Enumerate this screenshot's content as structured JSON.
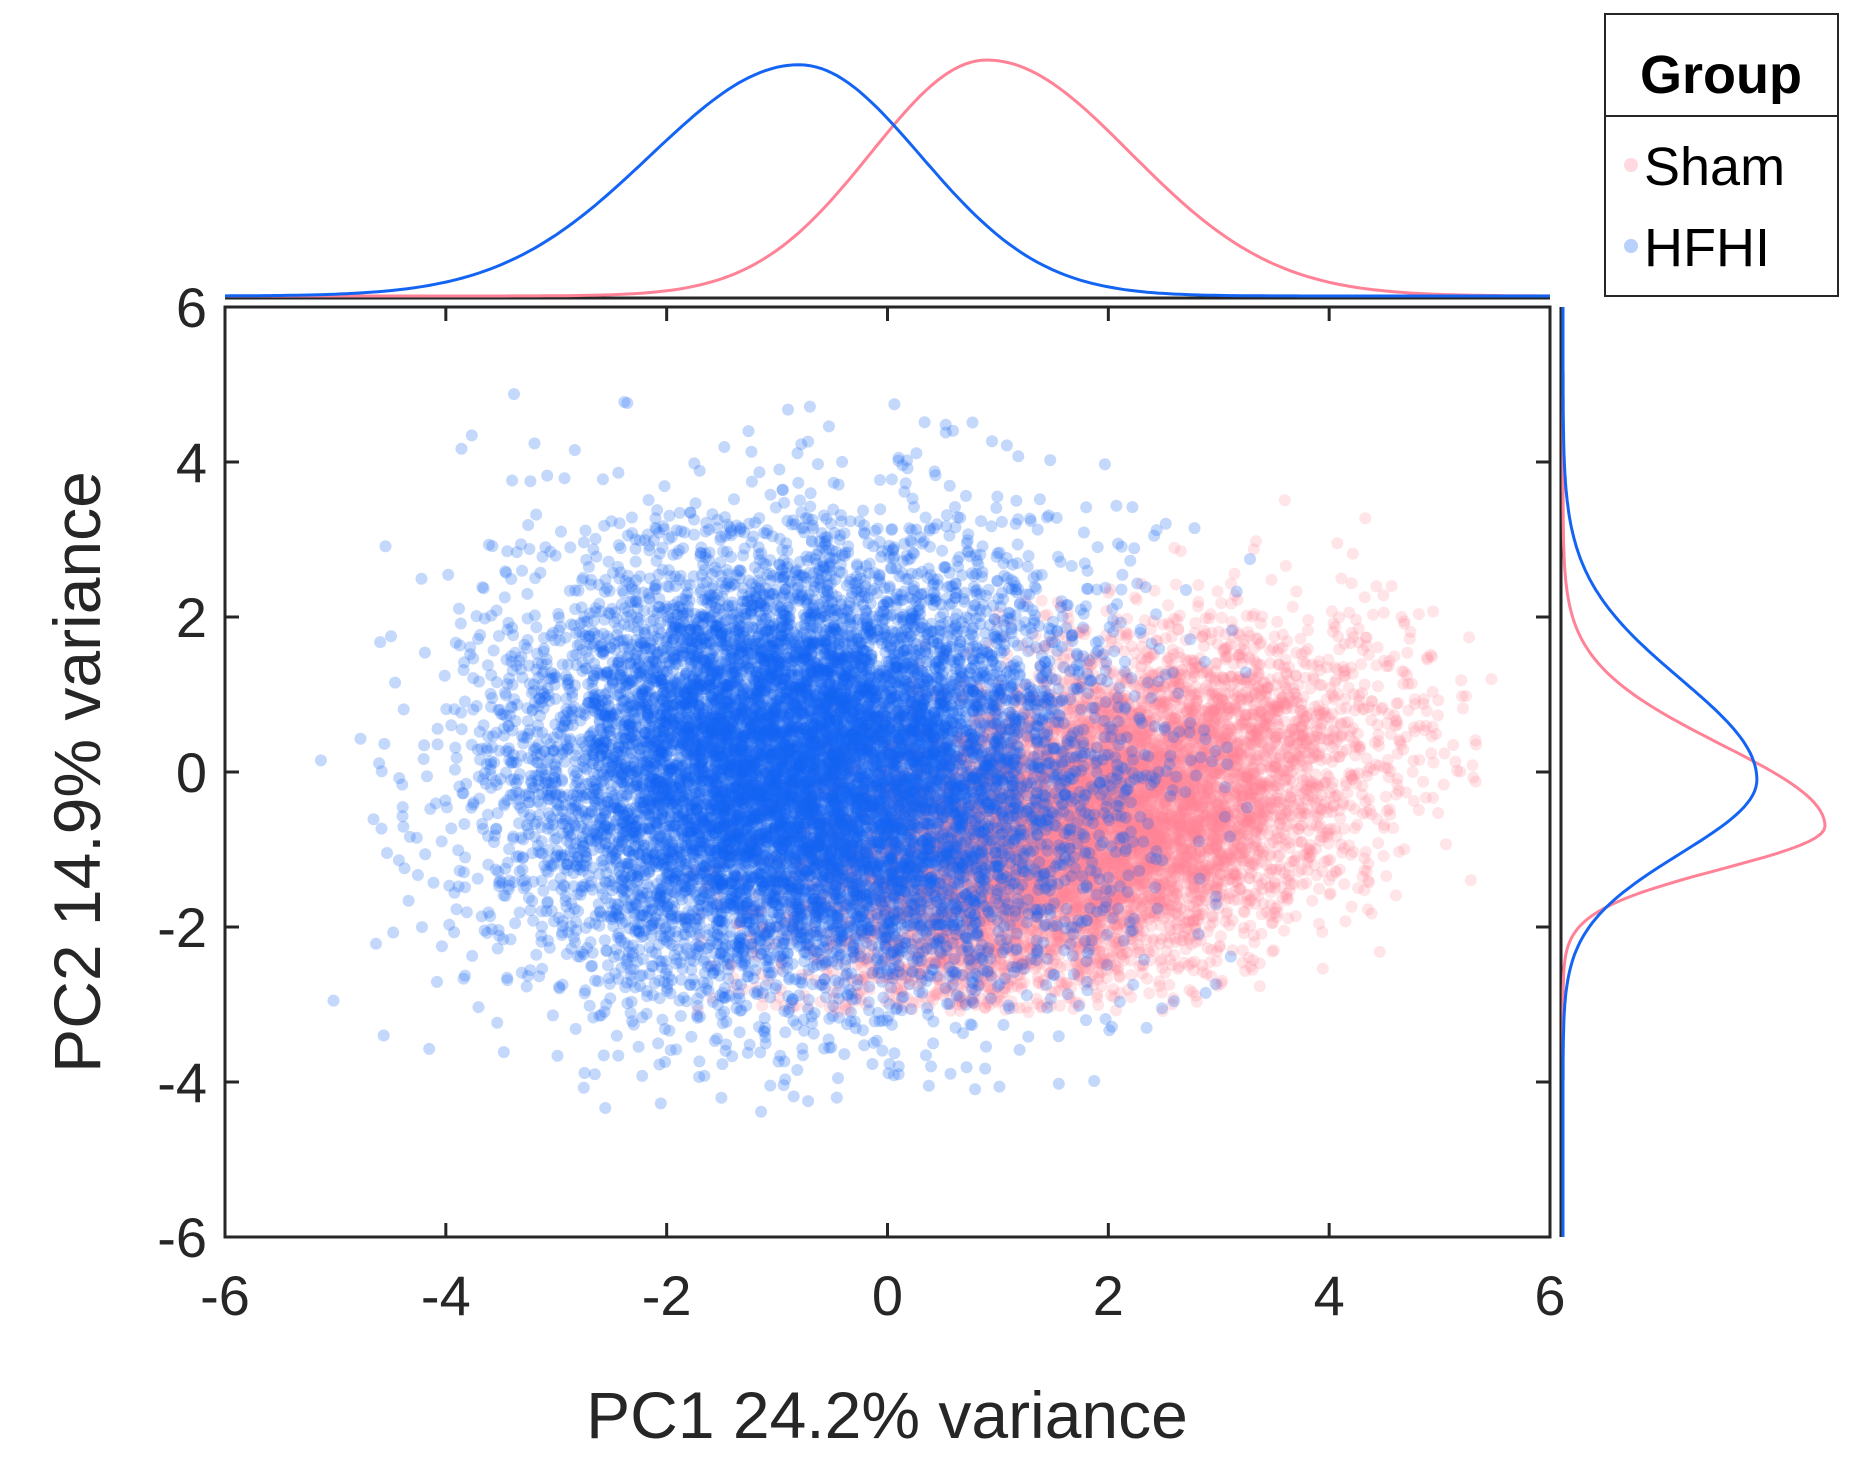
{
  "chart_data": {
    "type": "scatter",
    "xlabel": "PC1 24.2% variance",
    "ylabel": "PC2 14.9% variance",
    "xlim": [
      -6,
      6
    ],
    "ylim": [
      -6,
      6
    ],
    "xticks": [
      "-6",
      "-4",
      "-2",
      "0",
      "2",
      "4",
      "6"
    ],
    "yticks": [
      "-6",
      "-4",
      "-2",
      "0",
      "2",
      "4",
      "6"
    ],
    "grid": false,
    "legend": {
      "title": "Group",
      "placement": "top-right-outside",
      "entries": [
        "Sham",
        "HFHI"
      ]
    },
    "series": [
      {
        "name": "Sham",
        "color": "#ff8296",
        "opacity": 0.22,
        "points_approx": 9000,
        "x_center": 1.8,
        "x_spread": 1.2,
        "y_center": -0.7,
        "y_spread": 1.1,
        "x_range": [
          -2,
          5.5
        ],
        "y_range": [
          -3.1,
          3.8
        ],
        "marginal_x_peak": 0.9,
        "marginal_y_peak": -0.7
      },
      {
        "name": "HFHI",
        "color": "#1464f4",
        "opacity": 0.25,
        "points_approx": 12000,
        "x_center": -0.8,
        "x_spread": 1.25,
        "y_center": 0.0,
        "y_spread": 1.4,
        "x_range": [
          -5.2,
          3.3
        ],
        "y_range": [
          -4.4,
          5.0
        ],
        "marginal_x_peak": -0.8,
        "marginal_y_peak": -0.1
      }
    ]
  }
}
